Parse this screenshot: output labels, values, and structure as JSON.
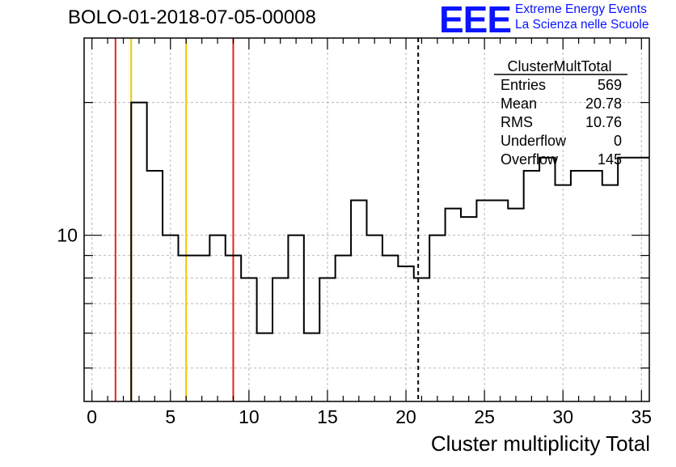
{
  "header": {
    "title": "BOLO-01-2018-07-05-00008",
    "logo_text": "EEE",
    "logo_line1": "Extreme Energy Events",
    "logo_line2": "La Scienza nelle Scuole"
  },
  "stats_box": {
    "name": "ClusterMultTotal",
    "rows": [
      {
        "label": "Entries",
        "value": "569"
      },
      {
        "label": "Mean",
        "value": "20.78"
      },
      {
        "label": "RMS",
        "value": "10.76"
      },
      {
        "label": "Underflow",
        "value": "0"
      },
      {
        "label": "Overflow",
        "value": "145"
      }
    ]
  },
  "chart_data": {
    "type": "histogram",
    "title": "BOLO-01-2018-07-05-00008",
    "xlabel": "Cluster multiplicity Total",
    "ylabel": "",
    "yscale": "log",
    "xlim": [
      -0.5,
      35.5
    ],
    "ylim": [
      4.2,
      28
    ],
    "x_ticks": [
      0,
      5,
      10,
      15,
      20,
      25,
      30,
      35
    ],
    "y_tick_labels": [
      {
        "value": 10,
        "label": "10"
      }
    ],
    "grid": true,
    "bin_width": 1,
    "bin_low_edges": [
      2.5,
      3.5,
      4.5,
      5.5,
      6.5,
      7.5,
      8.5,
      9.5,
      10.5,
      11.5,
      12.5,
      13.5,
      14.5,
      15.5,
      16.5,
      17.5,
      18.5,
      19.5,
      20.5,
      21.5,
      22.5,
      23.5,
      24.5,
      25.5,
      26.5,
      27.5,
      28.5,
      29.5,
      30.5,
      31.5,
      32.5,
      33.5,
      34.5
    ],
    "bin_contents": [
      20,
      14,
      10,
      9,
      9,
      10,
      9,
      8,
      6,
      8,
      10,
      6,
      8,
      9,
      12,
      10,
      9,
      8.5,
      8,
      10,
      11.5,
      11,
      12,
      12,
      11.5,
      14,
      15,
      13,
      14,
      14,
      13,
      15,
      15
    ],
    "vertical_lines": [
      {
        "x": 1.5,
        "color": "#e8231c",
        "style": "solid"
      },
      {
        "x": 2.5,
        "color": "#f2c500",
        "style": "solid"
      },
      {
        "x": 6,
        "color": "#f2c500",
        "style": "solid"
      },
      {
        "x": 9,
        "color": "#e8231c",
        "style": "solid"
      },
      {
        "x": 20.78,
        "color": "#000000",
        "style": "dashed"
      }
    ]
  }
}
